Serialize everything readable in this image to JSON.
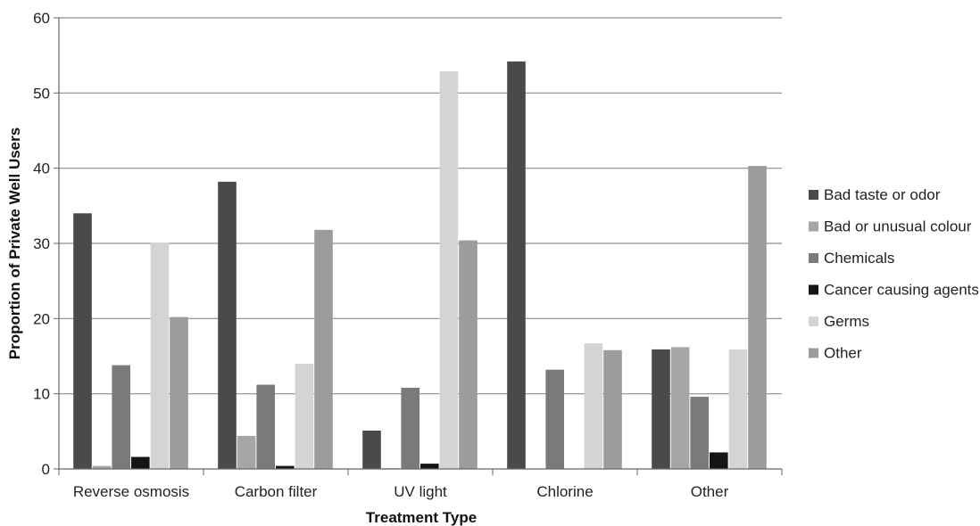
{
  "chart_data": {
    "type": "bar",
    "title": "",
    "xlabel": "Treatment Type",
    "ylabel": "Proportion of Private Well Users",
    "ylim": [
      0,
      60
    ],
    "yticks": [
      0,
      10,
      20,
      30,
      40,
      50,
      60
    ],
    "grid": true,
    "legend_position": "right",
    "categories": [
      "Reverse osmosis",
      "Carbon filter",
      "UV light",
      "Chlorine",
      "Other"
    ],
    "series": [
      {
        "name": "Bad taste or odor",
        "color": "#4a4a4a",
        "values": [
          34.0,
          38.2,
          5.1,
          54.2,
          15.9
        ]
      },
      {
        "name": "Bad or unusual colour",
        "color": "#a6a6a6",
        "values": [
          0.4,
          4.4,
          0.1,
          0,
          16.2
        ]
      },
      {
        "name": "Chemicals",
        "color": "#7a7a7a",
        "values": [
          13.8,
          11.2,
          10.8,
          13.2,
          9.6
        ]
      },
      {
        "name": "Cancer causing agents",
        "color": "#151515",
        "values": [
          1.6,
          0.4,
          0.7,
          0,
          2.2
        ]
      },
      {
        "name": "Germs",
        "color": "#d4d4d4",
        "values": [
          30.1,
          14.0,
          52.9,
          16.7,
          15.9
        ]
      },
      {
        "name": "Other",
        "color": "#9c9c9c",
        "values": [
          20.2,
          31.8,
          30.4,
          15.8,
          40.3
        ]
      }
    ]
  }
}
